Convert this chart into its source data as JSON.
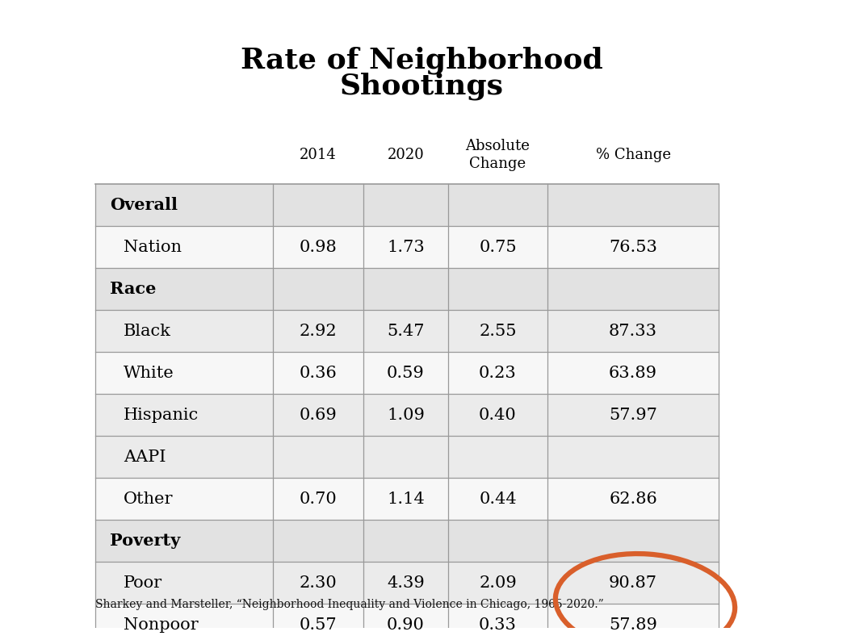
{
  "title_line1": "Rate of Neighborhood",
  "title_line2": "Shootings",
  "col_headers": [
    "2014",
    "2020",
    "Absolute\nChange",
    "% Change"
  ],
  "rows": [
    {
      "label": "Overall",
      "is_header": true,
      "indent": false,
      "values": [
        "",
        "",
        "",
        ""
      ]
    },
    {
      "label": "Nation",
      "is_header": false,
      "indent": true,
      "values": [
        "0.98",
        "1.73",
        "0.75",
        "76.53"
      ]
    },
    {
      "label": "Race",
      "is_header": true,
      "indent": false,
      "values": [
        "",
        "",
        "",
        ""
      ]
    },
    {
      "label": "Black",
      "is_header": false,
      "indent": true,
      "values": [
        "2.92",
        "5.47",
        "2.55",
        "87.33"
      ]
    },
    {
      "label": "White",
      "is_header": false,
      "indent": true,
      "values": [
        "0.36",
        "0.59",
        "0.23",
        "63.89"
      ]
    },
    {
      "label": "Hispanic",
      "is_header": false,
      "indent": true,
      "values": [
        "0.69",
        "1.09",
        "0.40",
        "57.97"
      ]
    },
    {
      "label": "AAPI",
      "is_header": false,
      "indent": true,
      "values": [
        "",
        "",
        "",
        ""
      ]
    },
    {
      "label": "Other",
      "is_header": false,
      "indent": true,
      "values": [
        "0.70",
        "1.14",
        "0.44",
        "62.86"
      ]
    },
    {
      "label": "Poverty",
      "is_header": true,
      "indent": false,
      "values": [
        "",
        "",
        "",
        ""
      ]
    },
    {
      "label": "Poor",
      "is_header": false,
      "indent": true,
      "values": [
        "2.30",
        "4.39",
        "2.09",
        "90.87"
      ]
    },
    {
      "label": "Nonpoor",
      "is_header": false,
      "indent": true,
      "values": [
        "0.57",
        "0.90",
        "0.33",
        "57.89"
      ]
    }
  ],
  "footer": "Sharkey and Marsteller, “Neighborhood Inequality and Violence in Chicago, 1965-2020.”",
  "circle_color": "#d95f2b",
  "row_bg_header": "#e2e2e2",
  "row_bg_light": "#ebebeb",
  "row_bg_white": "#f7f7f7"
}
